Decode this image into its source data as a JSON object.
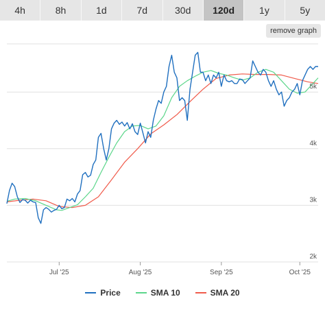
{
  "tabs": [
    {
      "label": "4h"
    },
    {
      "label": "8h"
    },
    {
      "label": "1d"
    },
    {
      "label": "7d"
    },
    {
      "label": "30d"
    },
    {
      "label": "120d",
      "active": true
    },
    {
      "label": "1y"
    },
    {
      "label": "5y"
    }
  ],
  "remove_graph_label": "remove graph",
  "colors": {
    "price": "#1f6fbf",
    "sma10": "#5bd68a",
    "sma20": "#f05a4a",
    "grid": "#e0e0e0"
  },
  "chart_data": {
    "type": "line",
    "x_start": "2025-06-11",
    "x_end": "2025-10-08",
    "x_ticks": [
      {
        "label": "Jul '25",
        "date": "2025-07-01"
      },
      {
        "label": "Aug '25",
        "date": "2025-08-01"
      },
      {
        "label": "Sep '25",
        "date": "2025-09-01"
      },
      {
        "label": "Oct '25",
        "date": "2025-10-01"
      }
    ],
    "y_ticks": [
      {
        "label": "2k",
        "value": 2000
      },
      {
        "label": "3k",
        "value": 3000
      },
      {
        "label": "4k",
        "value": 4000
      },
      {
        "label": "5k",
        "value": 5000
      }
    ],
    "ylim": [
      2000,
      5000
    ],
    "legend_position": "bottom",
    "series": [
      {
        "name": "Price",
        "color_key": "price",
        "points": [
          [
            "2025-06-11",
            3030
          ],
          [
            "2025-06-12",
            3260
          ],
          [
            "2025-06-13",
            3390
          ],
          [
            "2025-06-14",
            3330
          ],
          [
            "2025-06-15",
            3150
          ],
          [
            "2025-06-16",
            3050
          ],
          [
            "2025-06-17",
            3100
          ],
          [
            "2025-06-18",
            3090
          ],
          [
            "2025-06-19",
            3040
          ],
          [
            "2025-06-20",
            3090
          ],
          [
            "2025-06-21",
            3060
          ],
          [
            "2025-06-22",
            3050
          ],
          [
            "2025-06-23",
            2780
          ],
          [
            "2025-06-24",
            2680
          ],
          [
            "2025-06-25",
            2920
          ],
          [
            "2025-06-26",
            2960
          ],
          [
            "2025-06-27",
            2930
          ],
          [
            "2025-06-28",
            2880
          ],
          [
            "2025-06-29",
            2910
          ],
          [
            "2025-06-30",
            2930
          ],
          [
            "2025-07-01",
            3000
          ],
          [
            "2025-07-02",
            2940
          ],
          [
            "2025-07-03",
            2960
          ],
          [
            "2025-07-04",
            3110
          ],
          [
            "2025-07-05",
            3080
          ],
          [
            "2025-07-06",
            3120
          ],
          [
            "2025-07-07",
            3060
          ],
          [
            "2025-07-08",
            3200
          ],
          [
            "2025-07-09",
            3260
          ],
          [
            "2025-07-10",
            3540
          ],
          [
            "2025-07-11",
            3580
          ],
          [
            "2025-07-12",
            3500
          ],
          [
            "2025-07-13",
            3530
          ],
          [
            "2025-07-14",
            3720
          ],
          [
            "2025-07-15",
            3800
          ],
          [
            "2025-07-16",
            4200
          ],
          [
            "2025-07-17",
            4270
          ],
          [
            "2025-07-18",
            4000
          ],
          [
            "2025-07-19",
            3800
          ],
          [
            "2025-07-20",
            4000
          ],
          [
            "2025-07-21",
            4350
          ],
          [
            "2025-07-22",
            4450
          ],
          [
            "2025-07-23",
            4500
          ],
          [
            "2025-07-24",
            4430
          ],
          [
            "2025-07-25",
            4470
          ],
          [
            "2025-07-26",
            4400
          ],
          [
            "2025-07-27",
            4460
          ],
          [
            "2025-07-28",
            4350
          ],
          [
            "2025-07-29",
            4440
          ],
          [
            "2025-07-30",
            4300
          ],
          [
            "2025-07-31",
            4250
          ],
          [
            "2025-08-01",
            4450
          ],
          [
            "2025-08-02",
            4280
          ],
          [
            "2025-08-03",
            4100
          ],
          [
            "2025-08-04",
            4300
          ],
          [
            "2025-08-05",
            4200
          ],
          [
            "2025-08-06",
            4500
          ],
          [
            "2025-08-07",
            4700
          ],
          [
            "2025-08-08",
            4850
          ],
          [
            "2025-08-09",
            4800
          ],
          [
            "2025-08-10",
            5000
          ],
          [
            "2025-08-11",
            5100
          ],
          [
            "2025-08-12",
            5450
          ],
          [
            "2025-08-13",
            5650
          ],
          [
            "2025-08-14",
            5350
          ],
          [
            "2025-08-15",
            5250
          ],
          [
            "2025-08-16",
            4850
          ],
          [
            "2025-08-17",
            4900
          ],
          [
            "2025-08-18",
            4850
          ],
          [
            "2025-08-19",
            4500
          ],
          [
            "2025-08-20",
            5050
          ],
          [
            "2025-08-21",
            5350
          ],
          [
            "2025-08-22",
            5650
          ],
          [
            "2025-08-23",
            5700
          ],
          [
            "2025-08-24",
            5350
          ],
          [
            "2025-08-25",
            5350
          ],
          [
            "2025-08-26",
            5200
          ],
          [
            "2025-08-27",
            5300
          ],
          [
            "2025-08-28",
            5150
          ],
          [
            "2025-08-29",
            5300
          ],
          [
            "2025-08-30",
            5250
          ],
          [
            "2025-08-31",
            5350
          ],
          [
            "2025-09-01",
            5100
          ],
          [
            "2025-09-02",
            5300
          ],
          [
            "2025-09-03",
            5200
          ],
          [
            "2025-09-04",
            5180
          ],
          [
            "2025-09-05",
            5200
          ],
          [
            "2025-09-06",
            5150
          ],
          [
            "2025-09-07",
            5150
          ],
          [
            "2025-09-08",
            5230
          ],
          [
            "2025-09-09",
            5220
          ],
          [
            "2025-09-10",
            5150
          ],
          [
            "2025-09-11",
            5200
          ],
          [
            "2025-09-12",
            5250
          ],
          [
            "2025-09-13",
            5550
          ],
          [
            "2025-09-14",
            5450
          ],
          [
            "2025-09-15",
            5350
          ],
          [
            "2025-09-16",
            5300
          ],
          [
            "2025-09-17",
            5400
          ],
          [
            "2025-09-18",
            5350
          ],
          [
            "2025-09-19",
            5200
          ],
          [
            "2025-09-20",
            5100
          ],
          [
            "2025-09-21",
            5200
          ],
          [
            "2025-09-22",
            5050
          ],
          [
            "2025-09-23",
            4950
          ],
          [
            "2025-09-24",
            5000
          ],
          [
            "2025-09-25",
            4750
          ],
          [
            "2025-09-26",
            4850
          ],
          [
            "2025-09-27",
            4900
          ],
          [
            "2025-09-28",
            5000
          ],
          [
            "2025-09-29",
            5050
          ],
          [
            "2025-09-30",
            5150
          ],
          [
            "2025-10-01",
            4950
          ],
          [
            "2025-10-02",
            5200
          ],
          [
            "2025-10-03",
            5300
          ],
          [
            "2025-10-04",
            5400
          ],
          [
            "2025-10-05",
            5450
          ],
          [
            "2025-10-06",
            5400
          ],
          [
            "2025-10-07",
            5450
          ],
          [
            "2025-10-08",
            5450
          ]
        ]
      },
      {
        "name": "SMA 10",
        "color_key": "sma10",
        "points": [
          [
            "2025-06-11",
            3070
          ],
          [
            "2025-06-14",
            3110
          ],
          [
            "2025-06-18",
            3120
          ],
          [
            "2025-06-22",
            3080
          ],
          [
            "2025-06-26",
            3000
          ],
          [
            "2025-06-30",
            2920
          ],
          [
            "2025-07-02",
            2910
          ],
          [
            "2025-07-05",
            2960
          ],
          [
            "2025-07-08",
            3010
          ],
          [
            "2025-07-11",
            3150
          ],
          [
            "2025-07-14",
            3300
          ],
          [
            "2025-07-17",
            3580
          ],
          [
            "2025-07-20",
            3850
          ],
          [
            "2025-07-23",
            4100
          ],
          [
            "2025-07-26",
            4300
          ],
          [
            "2025-07-29",
            4400
          ],
          [
            "2025-08-01",
            4410
          ],
          [
            "2025-08-04",
            4350
          ],
          [
            "2025-08-07",
            4400
          ],
          [
            "2025-08-10",
            4580
          ],
          [
            "2025-08-13",
            4900
          ],
          [
            "2025-08-16",
            5100
          ],
          [
            "2025-08-19",
            5200
          ],
          [
            "2025-08-22",
            5280
          ],
          [
            "2025-08-25",
            5350
          ],
          [
            "2025-08-28",
            5380
          ],
          [
            "2025-08-31",
            5330
          ],
          [
            "2025-09-03",
            5300
          ],
          [
            "2025-09-06",
            5250
          ],
          [
            "2025-09-09",
            5210
          ],
          [
            "2025-09-12",
            5250
          ],
          [
            "2025-09-15",
            5350
          ],
          [
            "2025-09-18",
            5400
          ],
          [
            "2025-09-21",
            5350
          ],
          [
            "2025-09-24",
            5200
          ],
          [
            "2025-09-27",
            5050
          ],
          [
            "2025-09-30",
            4980
          ],
          [
            "2025-10-03",
            5000
          ],
          [
            "2025-10-06",
            5150
          ],
          [
            "2025-10-08",
            5250
          ]
        ]
      },
      {
        "name": "SMA 20",
        "color_key": "sma20",
        "points": [
          [
            "2025-06-11",
            3060
          ],
          [
            "2025-06-16",
            3090
          ],
          [
            "2025-06-21",
            3110
          ],
          [
            "2025-06-26",
            3080
          ],
          [
            "2025-07-01",
            2980
          ],
          [
            "2025-07-06",
            2960
          ],
          [
            "2025-07-11",
            3000
          ],
          [
            "2025-07-16",
            3150
          ],
          [
            "2025-07-21",
            3450
          ],
          [
            "2025-07-26",
            3760
          ],
          [
            "2025-07-31",
            4000
          ],
          [
            "2025-08-05",
            4260
          ],
          [
            "2025-08-10",
            4420
          ],
          [
            "2025-08-15",
            4600
          ],
          [
            "2025-08-20",
            4830
          ],
          [
            "2025-08-25",
            5050
          ],
          [
            "2025-08-30",
            5240
          ],
          [
            "2025-09-04",
            5300
          ],
          [
            "2025-09-09",
            5320
          ],
          [
            "2025-09-14",
            5310
          ],
          [
            "2025-09-19",
            5310
          ],
          [
            "2025-09-24",
            5300
          ],
          [
            "2025-09-29",
            5240
          ],
          [
            "2025-10-04",
            5180
          ],
          [
            "2025-10-08",
            5150
          ]
        ]
      }
    ]
  }
}
